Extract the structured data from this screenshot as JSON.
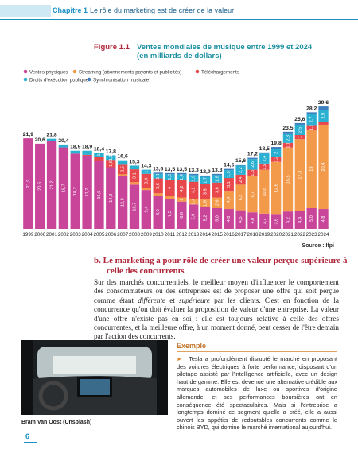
{
  "header": {
    "chapter": "Chapitre 1",
    "title": "Le rôle du marketing est de créer de la valeur"
  },
  "chart_data": {
    "type": "stacked-bar",
    "figure_label": "Figure 1.1",
    "title": "Ventes mondiales de musique entre 1999 et 2024",
    "subtitle": "(en milliards de dollars)",
    "source": "Source : Ifpi",
    "categories": [
      "1999",
      "2000",
      "2001",
      "2002",
      "2003",
      "2004",
      "2005",
      "2006",
      "2007",
      "2008",
      "2009",
      "2010",
      "2011",
      "2012",
      "2013",
      "2014",
      "2015",
      "2016",
      "2017",
      "2018",
      "2019",
      "2020",
      "2021",
      "2022",
      "2023",
      "2024"
    ],
    "series": [
      {
        "name": "Ventes physiques",
        "color": "#c8459a",
        "values": [
          21.9,
          20.6,
          21.2,
          19.7,
          18.2,
          17.7,
          16.5,
          14.9,
          12.8,
          10.7,
          9.4,
          8.0,
          7.3,
          6.6,
          5.9,
          5.2,
          5.0,
          4.8,
          4.5,
          4.0,
          3.7,
          3.6,
          4.2,
          4.4,
          5.0,
          4.8
        ],
        "value_labels": [
          "21,9",
          "20,6",
          "21,2",
          "19,7",
          "18,2",
          "17,7",
          "16,5",
          "14,9",
          "12,8",
          "10,7",
          "9,4",
          "8,0",
          "7,3",
          "6,6",
          "5,9",
          "5,2",
          "5,0",
          "4,8",
          "4,5",
          "4,0",
          "3,7",
          "3,6",
          "4,2",
          "4,4",
          "5,0",
          "4,8"
        ]
      },
      {
        "name": "Streaming (abonnements payants et publicités)",
        "color": "#f39a4a",
        "values": [
          null,
          null,
          null,
          null,
          null,
          null,
          null,
          null,
          0.4,
          0.6,
          0.5,
          0.6,
          0.6,
          1.0,
          1.4,
          1.9,
          2.6,
          4.4,
          6.2,
          8.7,
          10.6,
          12.6,
          15.5,
          17.3,
          19.0,
          20.4
        ],
        "value_labels": [
          null,
          null,
          null,
          null,
          null,
          null,
          null,
          null,
          null,
          null,
          null,
          null,
          null,
          "1",
          "1,4",
          "1,9",
          "2,6",
          "4,4",
          "6,2",
          "8,7",
          "10,6",
          "12,6",
          "15,5",
          "17,3",
          "19",
          "20,4"
        ]
      },
      {
        "name": "Téléchargements",
        "color": "#e8474c",
        "values": [
          null,
          null,
          null,
          null,
          null,
          0.2,
          0.9,
          1.8,
          2.5,
          3.1,
          3.4,
          3.6,
          4.0,
          4.2,
          4.1,
          3.8,
          3.6,
          3.1,
          2.4,
          1.6,
          1.5,
          1.2,
          1.1,
          1.0,
          1.1,
          0.7
        ],
        "value_labels": [
          null,
          null,
          null,
          null,
          null,
          null,
          null,
          "1,8",
          "2,5",
          "3,1",
          "3,4",
          "3,6",
          "4",
          "4,2",
          "4,1",
          "3,8",
          "3,6",
          "3,1",
          "2,4",
          "1,6",
          "1,5",
          "1,2",
          "1,1",
          "1",
          "1,1",
          null
        ]
      },
      {
        "name": "Droits d'exécution publique",
        "color": "#2ab0d0",
        "values": [
          null,
          null,
          0.6,
          0.7,
          0.7,
          1.0,
          1.0,
          1.1,
          0.9,
          0.9,
          1.0,
          1.1,
          1.3,
          1.4,
          1.6,
          1.7,
          1.8,
          1.9,
          2.2,
          2.6,
          2.4,
          2.0,
          2.3,
          2.5,
          2.7,
          2.9
        ],
        "value_labels": [
          null,
          null,
          null,
          null,
          null,
          "1",
          "1",
          "1,1",
          null,
          null,
          "1",
          "1,1",
          "1,3",
          "1,4",
          "1,6",
          "1,7",
          "1,8",
          "1,9",
          "2,2",
          "2,6",
          "2,4",
          "2",
          "2,3",
          "2,5",
          "2,7",
          "2,9"
        ]
      },
      {
        "name": "Synchronisation musicale",
        "color": "#3f7fc0",
        "values": [
          null,
          null,
          null,
          null,
          null,
          null,
          null,
          null,
          null,
          null,
          null,
          0.3,
          0.3,
          0.3,
          0.3,
          0.3,
          0.3,
          0.3,
          0.3,
          0.3,
          0.3,
          0.4,
          0.4,
          0.4,
          0.4,
          0.8
        ]
      }
    ],
    "totals": {
      "values": [
        21.9,
        20.6,
        21.8,
        20.4,
        18.9,
        18.9,
        18.4,
        17.8,
        16.6,
        15.3,
        14.3,
        13.6,
        13.5,
        13.5,
        13.3,
        12.9,
        13.3,
        14.5,
        15.6,
        17.2,
        18.5,
        19.8,
        23.5,
        25.6,
        28.2,
        29.6
      ],
      "value_labels": [
        "21,9",
        "20,6",
        "21,8",
        "20,4",
        "18,9",
        "18,9",
        "18,4",
        "17,8",
        "16,6",
        "15,3",
        "14,3",
        "13,6",
        "13,5",
        "13,5",
        "13,3",
        "12,9",
        "13,3",
        "14,5",
        "15,6",
        "17,2",
        "18,5",
        "19,8",
        "23,5",
        "25,6",
        "28,2",
        "29,6"
      ]
    }
  },
  "section": {
    "heading": "b. Le marketing a pour rôle de créer une valeur perçue supérieure à celle des concurrents",
    "paragraph": [
      "Sur des marchés concurrentiels, le meilleur moyen d'influencer le comportement des consommateurs ou des entreprises est de proposer une offre qui soit perçue comme étant ",
      "différente",
      " et ",
      "supérieure",
      " par les clients. C'est en fonction de la concurrence qu'on doit évaluer la proposition de valeur d'une entreprise. La valeur d'une offre n'existe pas en soi : elle est toujours relative à celle des offres concurrentes, et la meilleure offre, à un moment donné, peut cesser de l'être demain par l'action des concurrents."
    ]
  },
  "photo_caption": "Bram Van Oost (Unsplash)",
  "example": {
    "title": "Exemple",
    "text": "Tesla a profondément disrupté le marché en proposant des voitures électriques à forte performance, disposant d'un pilotage assisté par l'intelligence artificielle, avec un design haut de gamme. Elle est devenue une alternative crédible aux marques automobiles de luxe ou sportives d'origine allemande, et ses performances boursières ont en conséquence été spectaculaires. Mais si l'entreprise a longtemps dominé ce segment qu'elle a créé, elle a aussi ouvert les appétits de redoutables concurrents comme le chinois BYD, qui domine le marché international aujourd'hui."
  },
  "page_number": "6"
}
